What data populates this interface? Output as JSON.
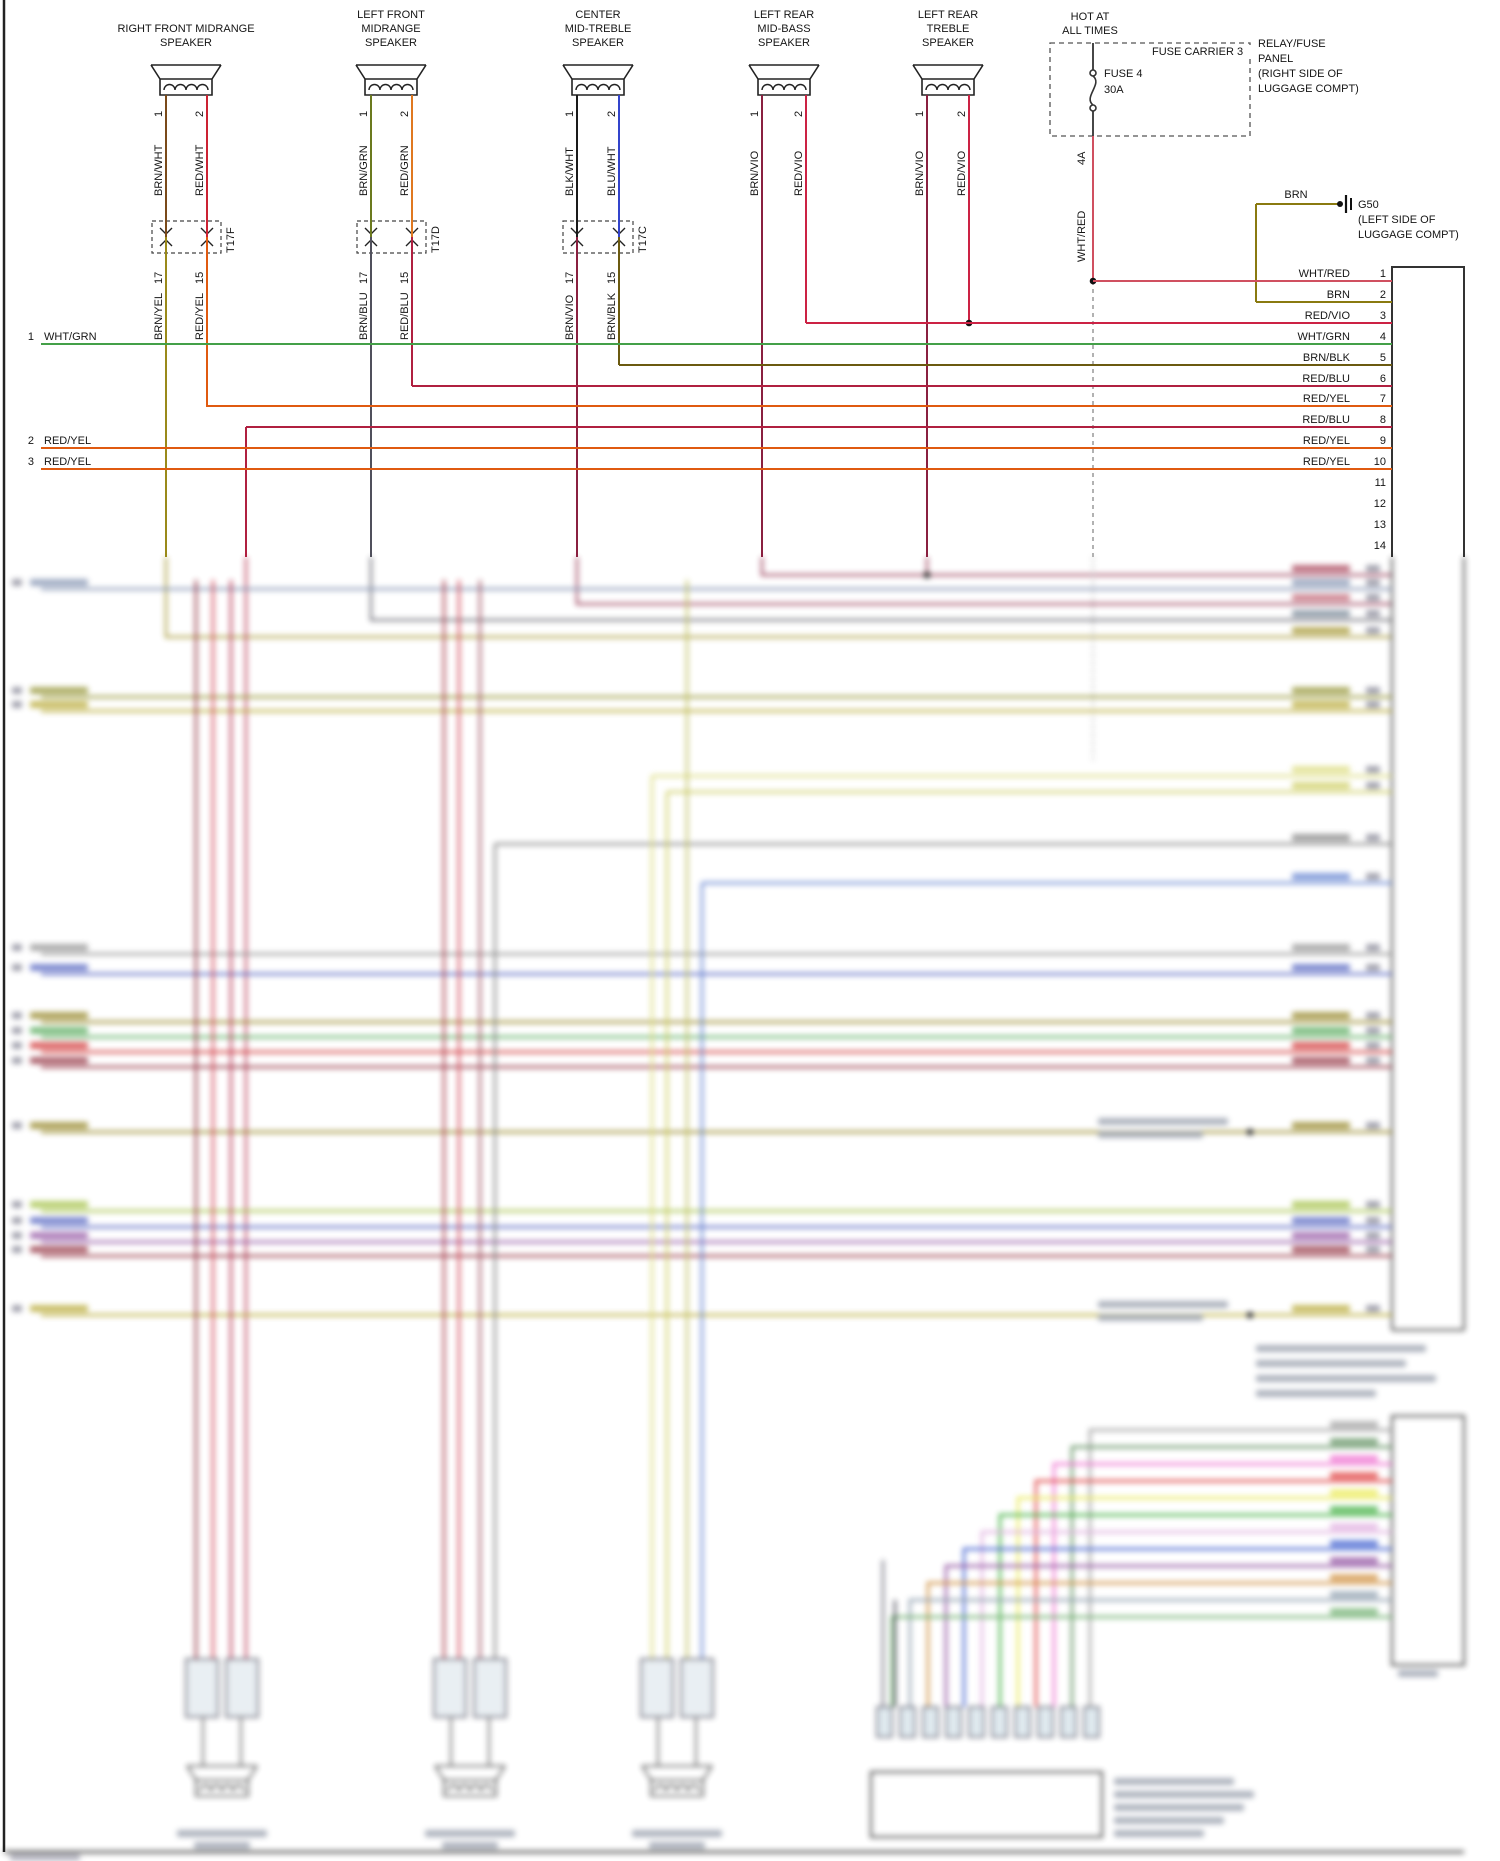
{
  "diagram": {
    "speakers": [
      {
        "name_lines": [
          "RIGHT FRONT MIDRANGE",
          "SPEAKER"
        ],
        "terminals": [
          {
            "pin": "1",
            "wire": "BRN/WHT",
            "wire_after": "BRN/YEL",
            "conn_pin": "17"
          },
          {
            "pin": "2",
            "wire": "RED/WHT",
            "wire_after": "RED/YEL",
            "conn_pin": "15"
          }
        ],
        "connector": "T17F"
      },
      {
        "name_lines": [
          "LEFT FRONT",
          "MIDRANGE",
          "SPEAKER"
        ],
        "terminals": [
          {
            "pin": "1",
            "wire": "BRN/GRN",
            "wire_after": "BRN/BLU",
            "conn_pin": "17"
          },
          {
            "pin": "2",
            "wire": "RED/GRN",
            "wire_after": "RED/BLU",
            "conn_pin": "15"
          }
        ],
        "connector": "T17D"
      },
      {
        "name_lines": [
          "CENTER",
          "MID-TREBLE",
          "SPEAKER"
        ],
        "terminals": [
          {
            "pin": "1",
            "wire": "BLK/WHT",
            "wire_after": "BRN/VIO",
            "conn_pin": "17"
          },
          {
            "pin": "2",
            "wire": "BLU/WHT",
            "wire_after": "BRN/BLK",
            "conn_pin": "15"
          }
        ],
        "connector": "T17C"
      },
      {
        "name_lines": [
          "LEFT REAR",
          "MID-BASS",
          "SPEAKER"
        ],
        "terminals": [
          {
            "pin": "1",
            "wire": "BRN/VIO"
          },
          {
            "pin": "2",
            "wire": "RED/VIO"
          }
        ]
      },
      {
        "name_lines": [
          "LEFT REAR",
          "TREBLE",
          "SPEAKER"
        ],
        "terminals": [
          {
            "pin": "1",
            "wire": "BRN/VIO"
          },
          {
            "pin": "2",
            "wire": "RED/VIO"
          }
        ]
      }
    ],
    "power": {
      "hot_lines": [
        "HOT AT",
        "ALL TIMES"
      ],
      "fuse_carrier": "FUSE CARRIER 3",
      "fuse_name": "FUSE 4",
      "fuse_rating": "30A",
      "panel_lines": [
        "RELAY/FUSE",
        "PANEL",
        "(RIGHT SIDE OF",
        "LUGGAGE COMPT)"
      ],
      "feed_wire": "WHT/RED",
      "feed_gauge": "4A"
    },
    "ground": {
      "wire": "BRN",
      "code": "G50",
      "location_lines": [
        "(LEFT SIDE OF",
        "LUGGAGE COMPT)"
      ]
    },
    "left_inputs": [
      {
        "ref": "1",
        "wire": "WHT/GRN"
      },
      {
        "ref": "2",
        "wire": "RED/YEL"
      },
      {
        "ref": "3",
        "wire": "RED/YEL"
      }
    ],
    "amplifier_pins": [
      {
        "pin": "1",
        "wire": "WHT/RED"
      },
      {
        "pin": "2",
        "wire": "BRN"
      },
      {
        "pin": "3",
        "wire": "RED/VIO"
      },
      {
        "pin": "4",
        "wire": "WHT/GRN"
      },
      {
        "pin": "5",
        "wire": "BRN/BLK"
      },
      {
        "pin": "6",
        "wire": "RED/BLU"
      },
      {
        "pin": "7",
        "wire": "RED/YEL"
      },
      {
        "pin": "8",
        "wire": "RED/BLU"
      },
      {
        "pin": "9",
        "wire": "RED/YEL"
      },
      {
        "pin": "10",
        "wire": "RED/YEL"
      },
      {
        "pin": "11",
        "wire": ""
      },
      {
        "pin": "12",
        "wire": ""
      },
      {
        "pin": "13",
        "wire": ""
      },
      {
        "pin": "14",
        "wire": ""
      }
    ],
    "wire_colors": {
      "BRN/WHT": "#7a4a1a",
      "RED/WHT": "#cc2233",
      "BRN/YEL": "#9a8a1a",
      "RED/YEL": "#e05a10",
      "BRN/GRN": "#6b7a1e",
      "RED/GRN": "#e07820",
      "BRN/BLU": "#50505c",
      "RED/BLU": "#b02040",
      "BLK/WHT": "#1a1a1a",
      "BLU/WHT": "#3344cc",
      "BRN/VIO": "#8a2040",
      "RED/VIO": "#cc2244",
      "BRN/BLK": "#6b5a10",
      "WHT/GRN": "#44a048",
      "WHT/RED": "#d05060",
      "BRN": "#8a7a10"
    }
  }
}
